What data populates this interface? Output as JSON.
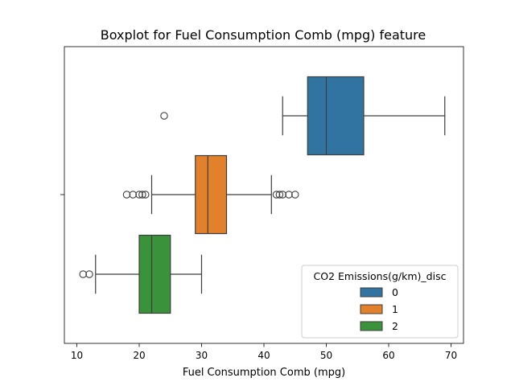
{
  "chart_data": {
    "type": "boxplot",
    "title": "Boxplot for Fuel Consumption Comb (mpg) feature",
    "xlabel": "Fuel Consumption Comb (mpg)",
    "ylabel": "",
    "xlim": [
      8,
      72
    ],
    "xticks": [
      10,
      20,
      30,
      40,
      50,
      60,
      70
    ],
    "grid": false,
    "legend": {
      "title": "CO2 Emissions(g/km)_disc",
      "placement": "lower-right",
      "entries": [
        "0",
        "1",
        "2"
      ]
    },
    "series": [
      {
        "name": "0",
        "color": "#3274a1",
        "whisker_low": 43,
        "q1": 47,
        "median": 50,
        "q3": 56,
        "whisker_high": 69,
        "outliers": [
          24
        ]
      },
      {
        "name": "1",
        "color": "#e1812c",
        "whisker_low": 22,
        "q1": 29,
        "median": 31,
        "q3": 34,
        "whisker_high": 41.2,
        "outliers": [
          18,
          19,
          20,
          20.5,
          21,
          42,
          42.5,
          43,
          44,
          45
        ]
      },
      {
        "name": "2",
        "color": "#3a923a",
        "whisker_low": 13,
        "q1": 20,
        "median": 22,
        "q3": 25,
        "whisker_high": 30,
        "outliers": [
          11,
          12
        ]
      }
    ]
  }
}
